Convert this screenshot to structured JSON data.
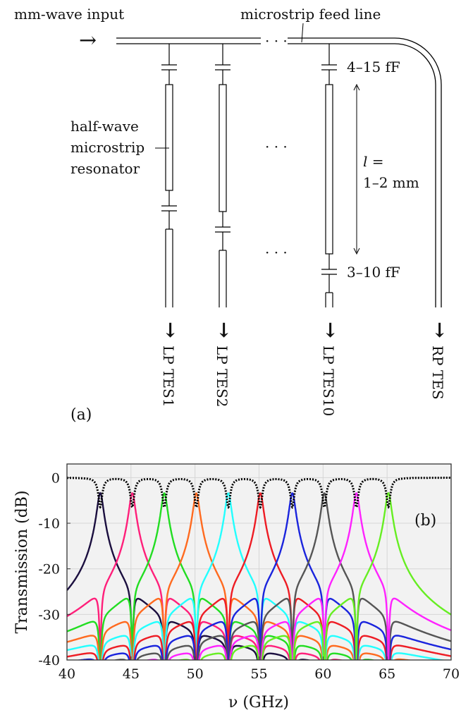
{
  "diagram": {
    "input_label": "mm-wave input",
    "input_arrow": "→",
    "feed_label": "microstrip feed line",
    "resonator_label_lines": [
      "half-wave",
      "microstrip",
      "resonator"
    ],
    "dots": "· · ·",
    "cap_top_label": "4–15 fF",
    "cap_bottom_label": "3–10 fF",
    "length_label_1": "l =",
    "length_label_2": "1–2 mm",
    "down_arrow": "↓",
    "outputs": [
      "LP TES1",
      "LP TES2",
      "LP TES10",
      "RP TES"
    ],
    "panel_label": "(a)"
  },
  "chart_data": {
    "type": "line",
    "panel_label": "(b)",
    "xlabel": "ν (GHz)",
    "ylabel": "Transmission (dB)",
    "xlim": [
      40,
      70
    ],
    "ylim": [
      -40,
      3
    ],
    "xticks": [
      40,
      45,
      50,
      55,
      60,
      65,
      70
    ],
    "yticks": [
      0,
      -10,
      -20,
      -30,
      -40
    ],
    "grid": true,
    "background": "#f2f2f2",
    "through_line": {
      "style": "dotted",
      "color": "#000000",
      "dip_to": -3
    },
    "series": [
      {
        "f0": 42.6,
        "color": "#1b0f3f"
      },
      {
        "f0": 45.1,
        "color": "#ff1f7a"
      },
      {
        "f0": 47.6,
        "color": "#22dd22"
      },
      {
        "f0": 50.1,
        "color": "#ff6a1f"
      },
      {
        "f0": 52.6,
        "color": "#22ffff"
      },
      {
        "f0": 55.1,
        "color": "#ee1c24"
      },
      {
        "f0": 57.6,
        "color": "#1a24dd"
      },
      {
        "f0": 60.1,
        "color": "#555555"
      },
      {
        "f0": 62.6,
        "color": "#ff22ff"
      },
      {
        "f0": 65.1,
        "color": "#66ee22"
      }
    ]
  }
}
